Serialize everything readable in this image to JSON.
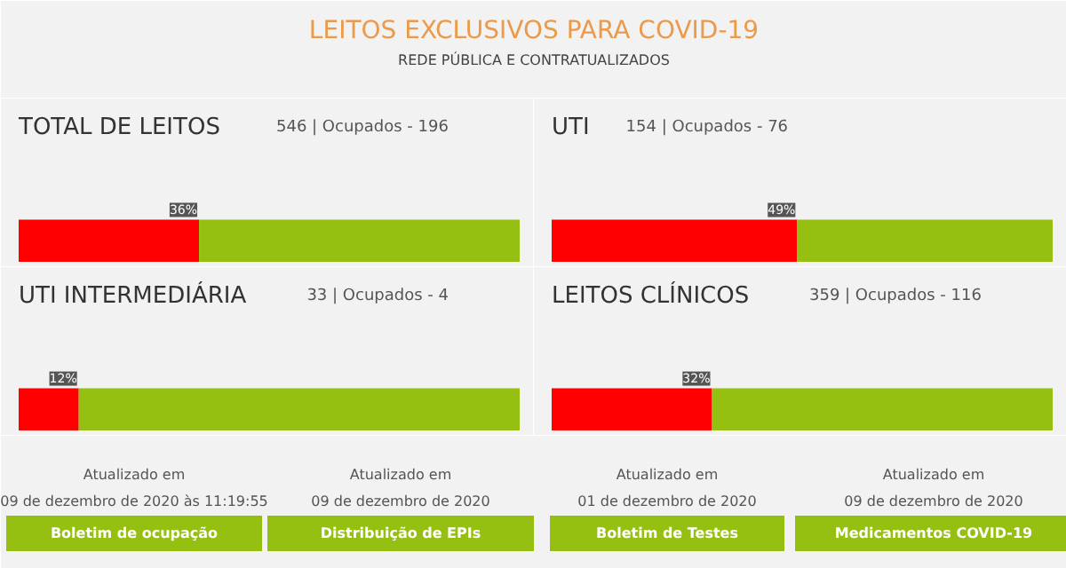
{
  "chart_data": [
    {
      "type": "other",
      "title": "LEITOS EXCLUSIVOS PARA COVID-19",
      "subtitle": "REDE PÚBLICA E CONTRATUALIZADOS"
    },
    {
      "type": "bar",
      "orientation": "horizontal",
      "stacked": true,
      "title": "TOTAL DE LEITOS",
      "subtitle": "546 | Ocupados - 196",
      "categories": [
        null
      ],
      "xlim": [
        0,
        100
      ],
      "series": [
        {
          "color": "#ff0000",
          "values": [
            36
          ],
          "value_labels": [
            "36%"
          ]
        },
        {
          "color": "#95c011",
          "values": [
            64
          ]
        }
      ]
    },
    {
      "type": "bar",
      "orientation": "horizontal",
      "stacked": true,
      "title": "UTI",
      "subtitle": "154 | Ocupados - 76",
      "categories": [
        null
      ],
      "xlim": [
        0,
        100
      ],
      "series": [
        {
          "color": "#ff0000",
          "values": [
            49
          ],
          "value_labels": [
            "49%"
          ]
        },
        {
          "color": "#95c011",
          "values": [
            51
          ]
        }
      ]
    },
    {
      "type": "bar",
      "orientation": "horizontal",
      "stacked": true,
      "title": "UTI INTERMEDIÁRIA",
      "subtitle": "33 | Ocupados - 4",
      "categories": [
        null
      ],
      "xlim": [
        0,
        100
      ],
      "series": [
        {
          "color": "#ff0000",
          "values": [
            12
          ],
          "value_labels": [
            "12%"
          ]
        },
        {
          "color": "#95c011",
          "values": [
            88
          ]
        }
      ]
    },
    {
      "type": "bar",
      "orientation": "horizontal",
      "stacked": true,
      "title": "LEITOS CLÍNICOS",
      "subtitle": "359 | Ocupados - 116",
      "categories": [
        null
      ],
      "xlim": [
        0,
        100
      ],
      "series": [
        {
          "color": "#ff0000",
          "values": [
            32
          ],
          "value_labels": [
            "32%"
          ]
        },
        {
          "color": "#95c011",
          "values": [
            68
          ]
        }
      ]
    },
    {
      "type": "other",
      "annotations": [
        "Atualizado em",
        "09 de dezembro de 2020 às 11:19:55",
        "Boletim de ocupação",
        "Atualizado em",
        "09 de dezembro de 2020",
        "Distribuição de EPIs",
        "Atualizado em",
        "01 de dezembro de 2020",
        "Boletim de Testes",
        "Atualizado em",
        "09 de dezembro de 2020",
        "Medicamentos COVID-19"
      ]
    }
  ]
}
